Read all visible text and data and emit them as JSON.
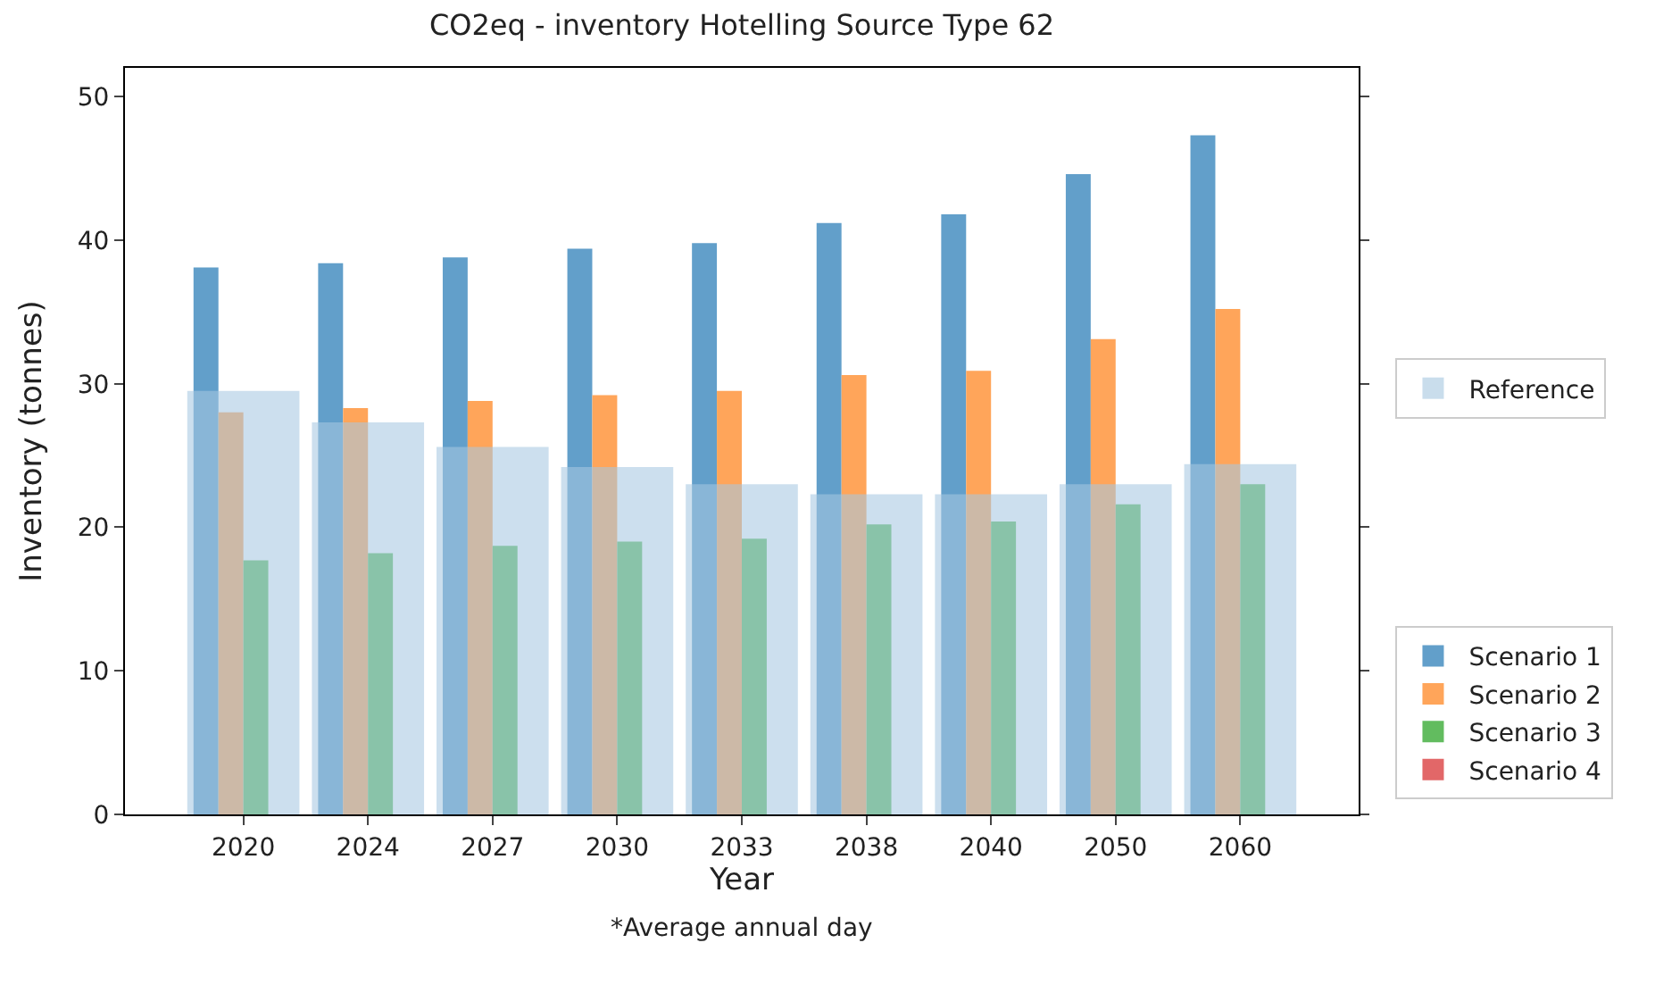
{
  "chart_data": {
    "type": "bar",
    "title": "CO2eq - inventory Hotelling Source Type 62",
    "xlabel": "Year",
    "ylabel": "Inventory (tonnes)",
    "categories": [
      "2020",
      "2024",
      "2027",
      "2030",
      "2033",
      "2038",
      "2040",
      "2050",
      "2060"
    ],
    "series": [
      {
        "name": "Scenario 1",
        "color": "#629fca",
        "values": [
          38.1,
          38.4,
          38.8,
          39.4,
          39.8,
          41.2,
          41.8,
          44.6,
          47.3
        ]
      },
      {
        "name": "Scenario 2",
        "color": "#ffa55a",
        "values": [
          28.0,
          28.3,
          28.8,
          29.2,
          29.5,
          30.6,
          30.9,
          33.1,
          35.2
        ]
      },
      {
        "name": "Scenario 3",
        "color": "#62bc5f",
        "values": [
          17.7,
          18.2,
          18.7,
          19.0,
          19.2,
          20.2,
          20.4,
          21.6,
          23.0
        ]
      },
      {
        "name": "Scenario 4",
        "color": "#e26768",
        "values": [
          null,
          null,
          null,
          null,
          null,
          null,
          null,
          null,
          null
        ]
      },
      {
        "name": "Reference",
        "color": "#a6c8e1",
        "values": [
          29.5,
          27.3,
          25.6,
          24.2,
          23.0,
          22.3,
          22.3,
          23.0,
          24.4
        ]
      }
    ],
    "ylim": [
      0,
      52
    ],
    "yticks": [
      0,
      10,
      20,
      30,
      40,
      50
    ],
    "legend": "right",
    "annotations": [
      "*Average annual day"
    ]
  }
}
